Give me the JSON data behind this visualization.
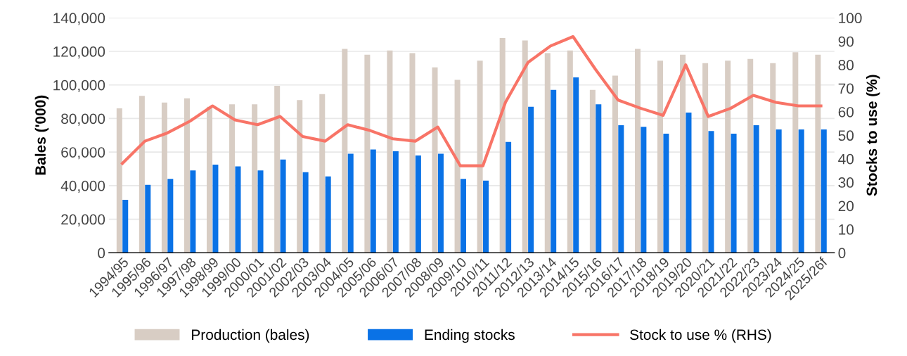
{
  "chart_data": {
    "type": "bar",
    "ylabel": "Bales ('000)",
    "y2label": "Stocks to use (%)",
    "categories": [
      "1994/95",
      "1995/96",
      "1996/97",
      "1997/98",
      "1998/99",
      "1999/00",
      "2000/01",
      "2001/02",
      "2002/03",
      "2003/04",
      "2004/05",
      "2005/06",
      "2006/07",
      "2007/08",
      "2008/09",
      "2009/10",
      "2010/11",
      "2011/12",
      "2012/13",
      "2013/14",
      "2014/15",
      "2015/16",
      "2016/17",
      "2017/18",
      "2018/19",
      "2019/20",
      "2020/21",
      "2021/22",
      "2022/23",
      "2023/24",
      "2024/25",
      "2025/26f"
    ],
    "series": [
      {
        "name": "Production (bales)",
        "color": "#d8cdc4",
        "values": [
          86000,
          93500,
          89500,
          92000,
          87000,
          88500,
          88500,
          99500,
          91000,
          94500,
          121500,
          118000,
          120500,
          119000,
          110500,
          103000,
          114500,
          128000,
          126500,
          119000,
          120500,
          97000,
          105500,
          121500,
          114500,
          118000,
          113000,
          114500,
          115500,
          113000,
          119500,
          118000
        ]
      },
      {
        "name": "Ending stocks",
        "color": "#0a72e6",
        "values": [
          31500,
          40500,
          44000,
          49000,
          52500,
          51500,
          49000,
          55500,
          48000,
          45500,
          59000,
          61500,
          60500,
          58000,
          59000,
          44000,
          43000,
          66000,
          87000,
          97000,
          104500,
          88500,
          76000,
          75000,
          71000,
          83500,
          72500,
          71000,
          76000,
          73500,
          73500,
          73500
        ]
      },
      {
        "name": "Stock to use % (RHS)",
        "type": "line",
        "axis": "y2",
        "color": "#f87467",
        "values": [
          38,
          47.5,
          51,
          56,
          62.5,
          56.5,
          54.5,
          58,
          49.5,
          47.5,
          54.5,
          52,
          48.5,
          47.5,
          53.5,
          37,
          37,
          64,
          81,
          88,
          92,
          78,
          65,
          61.5,
          58.5,
          80,
          58,
          61.5,
          67,
          64,
          62.5,
          62.5
        ]
      }
    ],
    "ylim": [
      0,
      140000
    ],
    "yticks": [
      {
        "value": 0,
        "label": "0"
      },
      {
        "value": 20000,
        "label": "20,000"
      },
      {
        "value": 40000,
        "label": "40,000"
      },
      {
        "value": 60000,
        "label": "60,000"
      },
      {
        "value": 80000,
        "label": "80,000"
      },
      {
        "value": 100000,
        "label": "100,000"
      },
      {
        "value": 120000,
        "label": "120,000"
      },
      {
        "value": 140000,
        "label": "140,000"
      }
    ],
    "y2lim": [
      0,
      100
    ],
    "y2ticks": [
      0,
      10,
      20,
      30,
      40,
      50,
      60,
      70,
      80,
      90,
      100
    ],
    "grid": "y",
    "legend": "bottom",
    "marker": "none",
    "line_style": "solid"
  }
}
